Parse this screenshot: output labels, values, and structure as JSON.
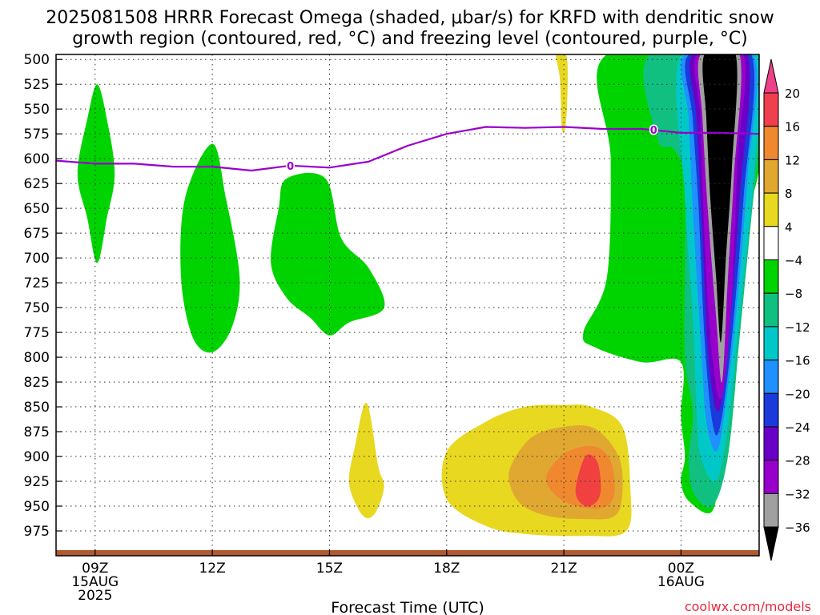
{
  "title": {
    "line1": "2025081508 HRRR Forecast Omega (shaded, μbar/s) for KRFD with dendritic snow",
    "line2": "growth region (contoured, red, °C) and freezing level (contoured, purple, °C)"
  },
  "credit": {
    "text": "coolwx.com/models",
    "color": "#e8283c"
  },
  "chart_data": {
    "type": "area",
    "title": "2025081508 HRRR Forecast Omega (shaded, μbar/s) for KRFD with dendritic snow growth region (contoured, red, °C) and freezing level (contoured, purple, °C)",
    "xlabel": "Forecast Time (UTC)",
    "ylabel": "",
    "x_range_hours_since_08Z_15AUG": [
      0,
      18
    ],
    "ylim_pressure_mb": [
      1000,
      495
    ],
    "y_ticks": [
      500,
      525,
      550,
      575,
      600,
      625,
      650,
      675,
      700,
      725,
      750,
      775,
      800,
      825,
      850,
      875,
      900,
      925,
      950,
      975
    ],
    "x_ticks": [
      {
        "hour": 1,
        "line1": "09Z",
        "line2": "15AUG",
        "line3": "2025"
      },
      {
        "hour": 4,
        "line1": "12Z",
        "line2": "",
        "line3": ""
      },
      {
        "hour": 7,
        "line1": "15Z",
        "line2": "",
        "line3": ""
      },
      {
        "hour": 10,
        "line1": "18Z",
        "line2": "",
        "line3": ""
      },
      {
        "hour": 13,
        "line1": "21Z",
        "line2": "",
        "line3": ""
      },
      {
        "hour": 16,
        "line1": "00Z",
        "line2": "16AUG",
        "line3": ""
      }
    ],
    "grid": true,
    "freezing_level": {
      "label": "0",
      "color": "#9900cc",
      "points": [
        [
          0,
          602
        ],
        [
          1,
          605
        ],
        [
          2,
          605
        ],
        [
          3,
          608
        ],
        [
          4,
          608
        ],
        [
          5,
          612
        ],
        [
          6,
          607
        ],
        [
          7,
          609
        ],
        [
          8,
          603
        ],
        [
          9,
          587
        ],
        [
          10,
          575
        ],
        [
          11,
          568
        ],
        [
          12,
          569
        ],
        [
          13,
          568
        ],
        [
          14,
          570
        ],
        [
          15,
          570
        ],
        [
          16,
          574
        ],
        [
          17,
          574
        ],
        [
          18,
          575
        ]
      ]
    },
    "omega_regions": [
      {
        "level": "-4 to -8",
        "color": "#00d400",
        "points": [
          [
            1.05,
            525
          ],
          [
            1.3,
            560
          ],
          [
            1.5,
            615
          ],
          [
            1.3,
            660
          ],
          [
            1.05,
            705
          ],
          [
            0.8,
            660
          ],
          [
            0.55,
            615
          ],
          [
            0.8,
            560
          ]
        ]
      },
      {
        "level": "-4 to -8",
        "color": "#00d400",
        "points": [
          [
            4,
            585
          ],
          [
            4.35,
            640
          ],
          [
            4.7,
            720
          ],
          [
            4.5,
            770
          ],
          [
            4,
            795
          ],
          [
            3.5,
            780
          ],
          [
            3.2,
            720
          ],
          [
            3.3,
            640
          ]
        ]
      },
      {
        "level": "-4 to -8",
        "color": "#00d400",
        "points": [
          [
            5.9,
            620
          ],
          [
            6.9,
            620
          ],
          [
            7.3,
            680
          ],
          [
            8,
            710
          ],
          [
            8.4,
            750
          ],
          [
            7.5,
            765
          ],
          [
            7,
            778
          ],
          [
            6.5,
            760
          ],
          [
            5.9,
            740
          ],
          [
            5.5,
            705
          ],
          [
            5.7,
            650
          ]
        ]
      },
      {
        "level": "-4 to -8",
        "color": "#00d400",
        "points": [
          [
            14.1,
            495
          ],
          [
            18,
            495
          ],
          [
            18,
            610
          ],
          [
            17.3,
            700
          ],
          [
            17.2,
            800
          ],
          [
            17,
            900
          ],
          [
            16.8,
            955
          ],
          [
            16.2,
            945
          ],
          [
            16,
            925
          ],
          [
            16.1,
            900
          ],
          [
            16,
            860
          ],
          [
            16,
            805
          ],
          [
            15,
            805
          ],
          [
            13.8,
            790
          ],
          [
            13.5,
            775
          ],
          [
            14.1,
            720
          ],
          [
            14.2,
            600
          ]
        ]
      },
      {
        "level": "-8 to -12",
        "color": "#10c080",
        "points": [
          [
            15.2,
            495
          ],
          [
            18,
            495
          ],
          [
            18,
            580
          ],
          [
            17.8,
            660
          ],
          [
            17.5,
            780
          ],
          [
            17.2,
            900
          ],
          [
            16.8,
            950
          ],
          [
            16.3,
            935
          ],
          [
            16.2,
            900
          ],
          [
            16.3,
            855
          ],
          [
            16.1,
            800
          ],
          [
            16.1,
            700
          ],
          [
            16.1,
            620
          ],
          [
            15.8,
            590
          ],
          [
            15.4,
            580
          ]
        ]
      },
      {
        "level": "-12 to -16",
        "color": "#00c8c8",
        "points": [
          [
            16,
            495
          ],
          [
            18,
            495
          ],
          [
            17.9,
            600
          ],
          [
            17.5,
            760
          ],
          [
            17.2,
            870
          ],
          [
            16.9,
            925
          ],
          [
            16.5,
            900
          ],
          [
            16.4,
            855
          ],
          [
            16.3,
            760
          ],
          [
            16.1,
            640
          ]
        ]
      },
      {
        "level": "-16 to -20",
        "color": "#1e90ff",
        "points": [
          [
            16.1,
            495
          ],
          [
            17.85,
            495
          ],
          [
            17.7,
            620
          ],
          [
            17.4,
            760
          ],
          [
            17.1,
            860
          ],
          [
            16.9,
            895
          ],
          [
            16.65,
            865
          ],
          [
            16.5,
            780
          ],
          [
            16.3,
            650
          ],
          [
            16.2,
            560
          ]
        ]
      },
      {
        "level": "-20 to -24",
        "color": "#1a3adb",
        "points": [
          [
            16.2,
            495
          ],
          [
            17.8,
            495
          ],
          [
            17.6,
            640
          ],
          [
            17.3,
            780
          ],
          [
            17,
            870
          ],
          [
            16.8,
            865
          ],
          [
            16.6,
            780
          ],
          [
            16.45,
            650
          ],
          [
            16.3,
            560
          ]
        ]
      },
      {
        "level": "-24 to -28",
        "color": "#6a00c8",
        "points": [
          [
            16.3,
            495
          ],
          [
            17.7,
            495
          ],
          [
            17.5,
            640
          ],
          [
            17.2,
            790
          ],
          [
            16.95,
            855
          ],
          [
            16.7,
            800
          ],
          [
            16.55,
            680
          ],
          [
            16.4,
            560
          ]
        ]
      },
      {
        "level": "-28 to -32",
        "color": "#9900cc",
        "points": [
          [
            16.4,
            495
          ],
          [
            17.6,
            495
          ],
          [
            17.45,
            600
          ],
          [
            17.3,
            740
          ],
          [
            17.05,
            840
          ],
          [
            16.8,
            800
          ],
          [
            16.6,
            680
          ],
          [
            16.5,
            560
          ]
        ]
      },
      {
        "level": "-32 to -36",
        "color": "#a0a0a0",
        "points": [
          [
            16.5,
            495
          ],
          [
            17.5,
            495
          ],
          [
            17.35,
            620
          ],
          [
            17.2,
            720
          ],
          [
            17.05,
            825
          ],
          [
            16.9,
            760
          ],
          [
            16.7,
            660
          ],
          [
            16.55,
            560
          ]
        ]
      },
      {
        "level": "< -36",
        "color": "#000000",
        "points": [
          [
            16.6,
            495
          ],
          [
            17.4,
            495
          ],
          [
            17.3,
            610
          ],
          [
            17.15,
            700
          ],
          [
            17.02,
            785
          ],
          [
            16.9,
            720
          ],
          [
            16.75,
            640
          ],
          [
            16.65,
            560
          ]
        ]
      },
      {
        "level": "4 to 8",
        "color": "#e8d820",
        "points": [
          [
            12.8,
            495
          ],
          [
            13.05,
            495
          ],
          [
            13.1,
            520
          ],
          [
            13.05,
            565
          ],
          [
            12.95,
            570
          ],
          [
            12.9,
            520
          ]
        ]
      },
      {
        "level": "4 to 8",
        "color": "#e8d820",
        "points": [
          [
            7.95,
            846
          ],
          [
            8.25,
            910
          ],
          [
            8.4,
            930
          ],
          [
            8.2,
            955
          ],
          [
            7.95,
            962
          ],
          [
            7.7,
            950
          ],
          [
            7.5,
            925
          ],
          [
            7.65,
            890
          ]
        ]
      },
      {
        "level": "4 to 8",
        "color": "#e8d820",
        "points": [
          [
            10,
            895
          ],
          [
            11,
            865
          ],
          [
            12,
            850
          ],
          [
            13,
            848
          ],
          [
            13.7,
            850
          ],
          [
            14.5,
            870
          ],
          [
            14.7,
            930
          ],
          [
            14.6,
            975
          ],
          [
            13.5,
            980
          ],
          [
            12,
            978
          ],
          [
            11,
            970
          ],
          [
            10,
            943
          ]
        ]
      },
      {
        "level": "8 to 12",
        "color": "#e0a830",
        "points": [
          [
            11.7,
            905
          ],
          [
            12.2,
            880
          ],
          [
            13,
            870
          ],
          [
            13.8,
            872
          ],
          [
            14.4,
            900
          ],
          [
            14.5,
            935
          ],
          [
            14.3,
            960
          ],
          [
            13.5,
            963
          ],
          [
            12.6,
            960
          ],
          [
            11.9,
            948
          ],
          [
            11.6,
            925
          ]
        ]
      },
      {
        "level": "12 to 16",
        "color": "#f08830",
        "points": [
          [
            12.6,
            915
          ],
          [
            13.1,
            895
          ],
          [
            13.8,
            890
          ],
          [
            14.2,
            905
          ],
          [
            14.3,
            935
          ],
          [
            14.1,
            950
          ],
          [
            13.6,
            952
          ],
          [
            13,
            945
          ],
          [
            12.6,
            930
          ]
        ]
      },
      {
        "level": "16 to 20",
        "color": "#f04040",
        "points": [
          [
            13.3,
            935
          ],
          [
            13.55,
            900
          ],
          [
            13.85,
            905
          ],
          [
            13.95,
            930
          ],
          [
            13.85,
            945
          ],
          [
            13.55,
            950
          ]
        ]
      }
    ],
    "colorbar": {
      "labels": [
        "20",
        "16",
        "12",
        "8",
        "4",
        "−4",
        "−8",
        "−12",
        "−16",
        "−20",
        "−24",
        "−28",
        "−32",
        "−36"
      ],
      "colors": [
        "#f04050",
        "#f08830",
        "#e0a830",
        "#e8d820",
        "#ffffff",
        "#00d400",
        "#10c080",
        "#00c8c8",
        "#1e90ff",
        "#1a3adb",
        "#6a00c8",
        "#9900cc",
        "#a0a0a0"
      ],
      "top_arrow_color": "#f0408a",
      "bottom_arrow_color": "#000000"
    },
    "surface_color": "#b05a30"
  }
}
